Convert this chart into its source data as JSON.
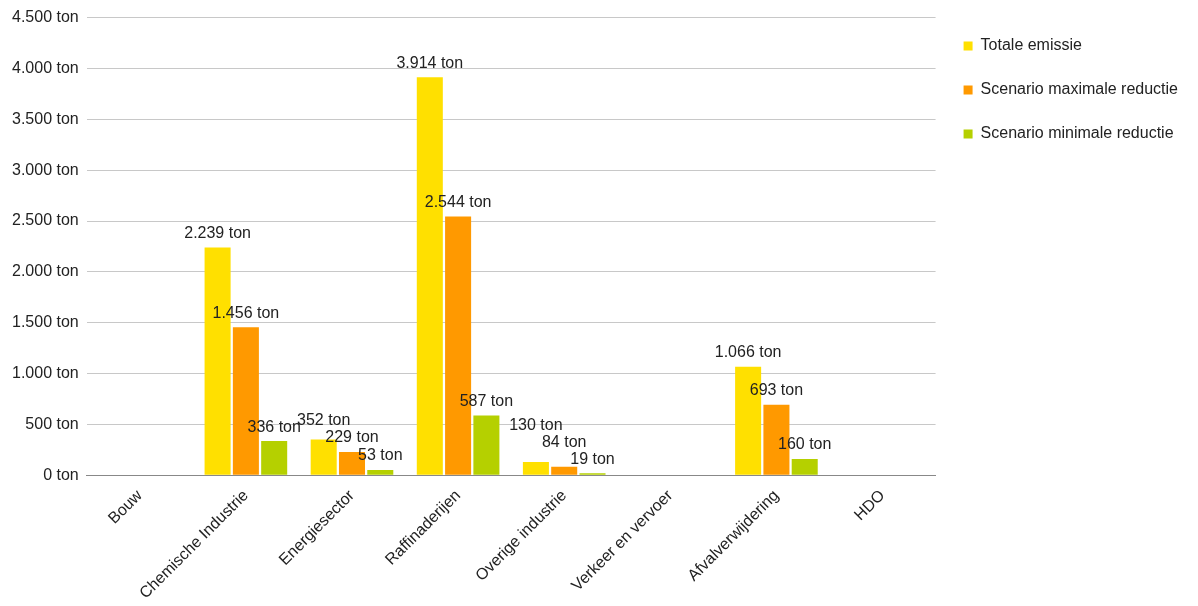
{
  "chart_data": {
    "type": "bar",
    "categories": [
      "Bouw",
      "Chemische Industrie",
      "Energiesector",
      "Raffinaderijen",
      "Overige industrie",
      "Verkeer en vervoer",
      "Afvalverwijdering",
      "HDO"
    ],
    "series": [
      {
        "name": "Totale emissie",
        "color": "#ffe000",
        "values": [
          null,
          2239,
          352,
          3914,
          130,
          null,
          1066,
          null
        ],
        "value_labels": [
          null,
          "2.239 ton",
          "352 ton",
          "3.914 ton",
          "130 ton",
          null,
          "1.066 ton",
          null
        ]
      },
      {
        "name": "Scenario maximale reductie",
        "color": "#ff9900",
        "values": [
          null,
          1456,
          229,
          2544,
          84,
          null,
          693,
          null
        ],
        "value_labels": [
          null,
          "1.456 ton",
          "229 ton",
          "2.544 ton",
          "84 ton",
          null,
          "693 ton",
          null
        ]
      },
      {
        "name": "Scenario minimale reductie",
        "color": "#b5d000",
        "values": [
          null,
          336,
          53,
          587,
          19,
          null,
          160,
          null
        ],
        "value_labels": [
          null,
          "336 ton",
          "53 ton",
          "587 ton",
          "19 ton",
          null,
          "160 ton",
          null
        ]
      }
    ],
    "ylim": [
      0,
      4500
    ],
    "yticks": [
      {
        "value": 0,
        "label": "0 ton"
      },
      {
        "value": 500,
        "label": "500 ton"
      },
      {
        "value": 1000,
        "label": "1.000 ton"
      },
      {
        "value": 1500,
        "label": "1.500 ton"
      },
      {
        "value": 2000,
        "label": "2.000 ton"
      },
      {
        "value": 2500,
        "label": "2.500 ton"
      },
      {
        "value": 3000,
        "label": "3.000 ton"
      },
      {
        "value": 3500,
        "label": "3.500 ton"
      },
      {
        "value": 4000,
        "label": "4.000 ton"
      },
      {
        "value": 4500,
        "label": "4.500 ton"
      }
    ],
    "grid": "y",
    "legend": "right"
  }
}
